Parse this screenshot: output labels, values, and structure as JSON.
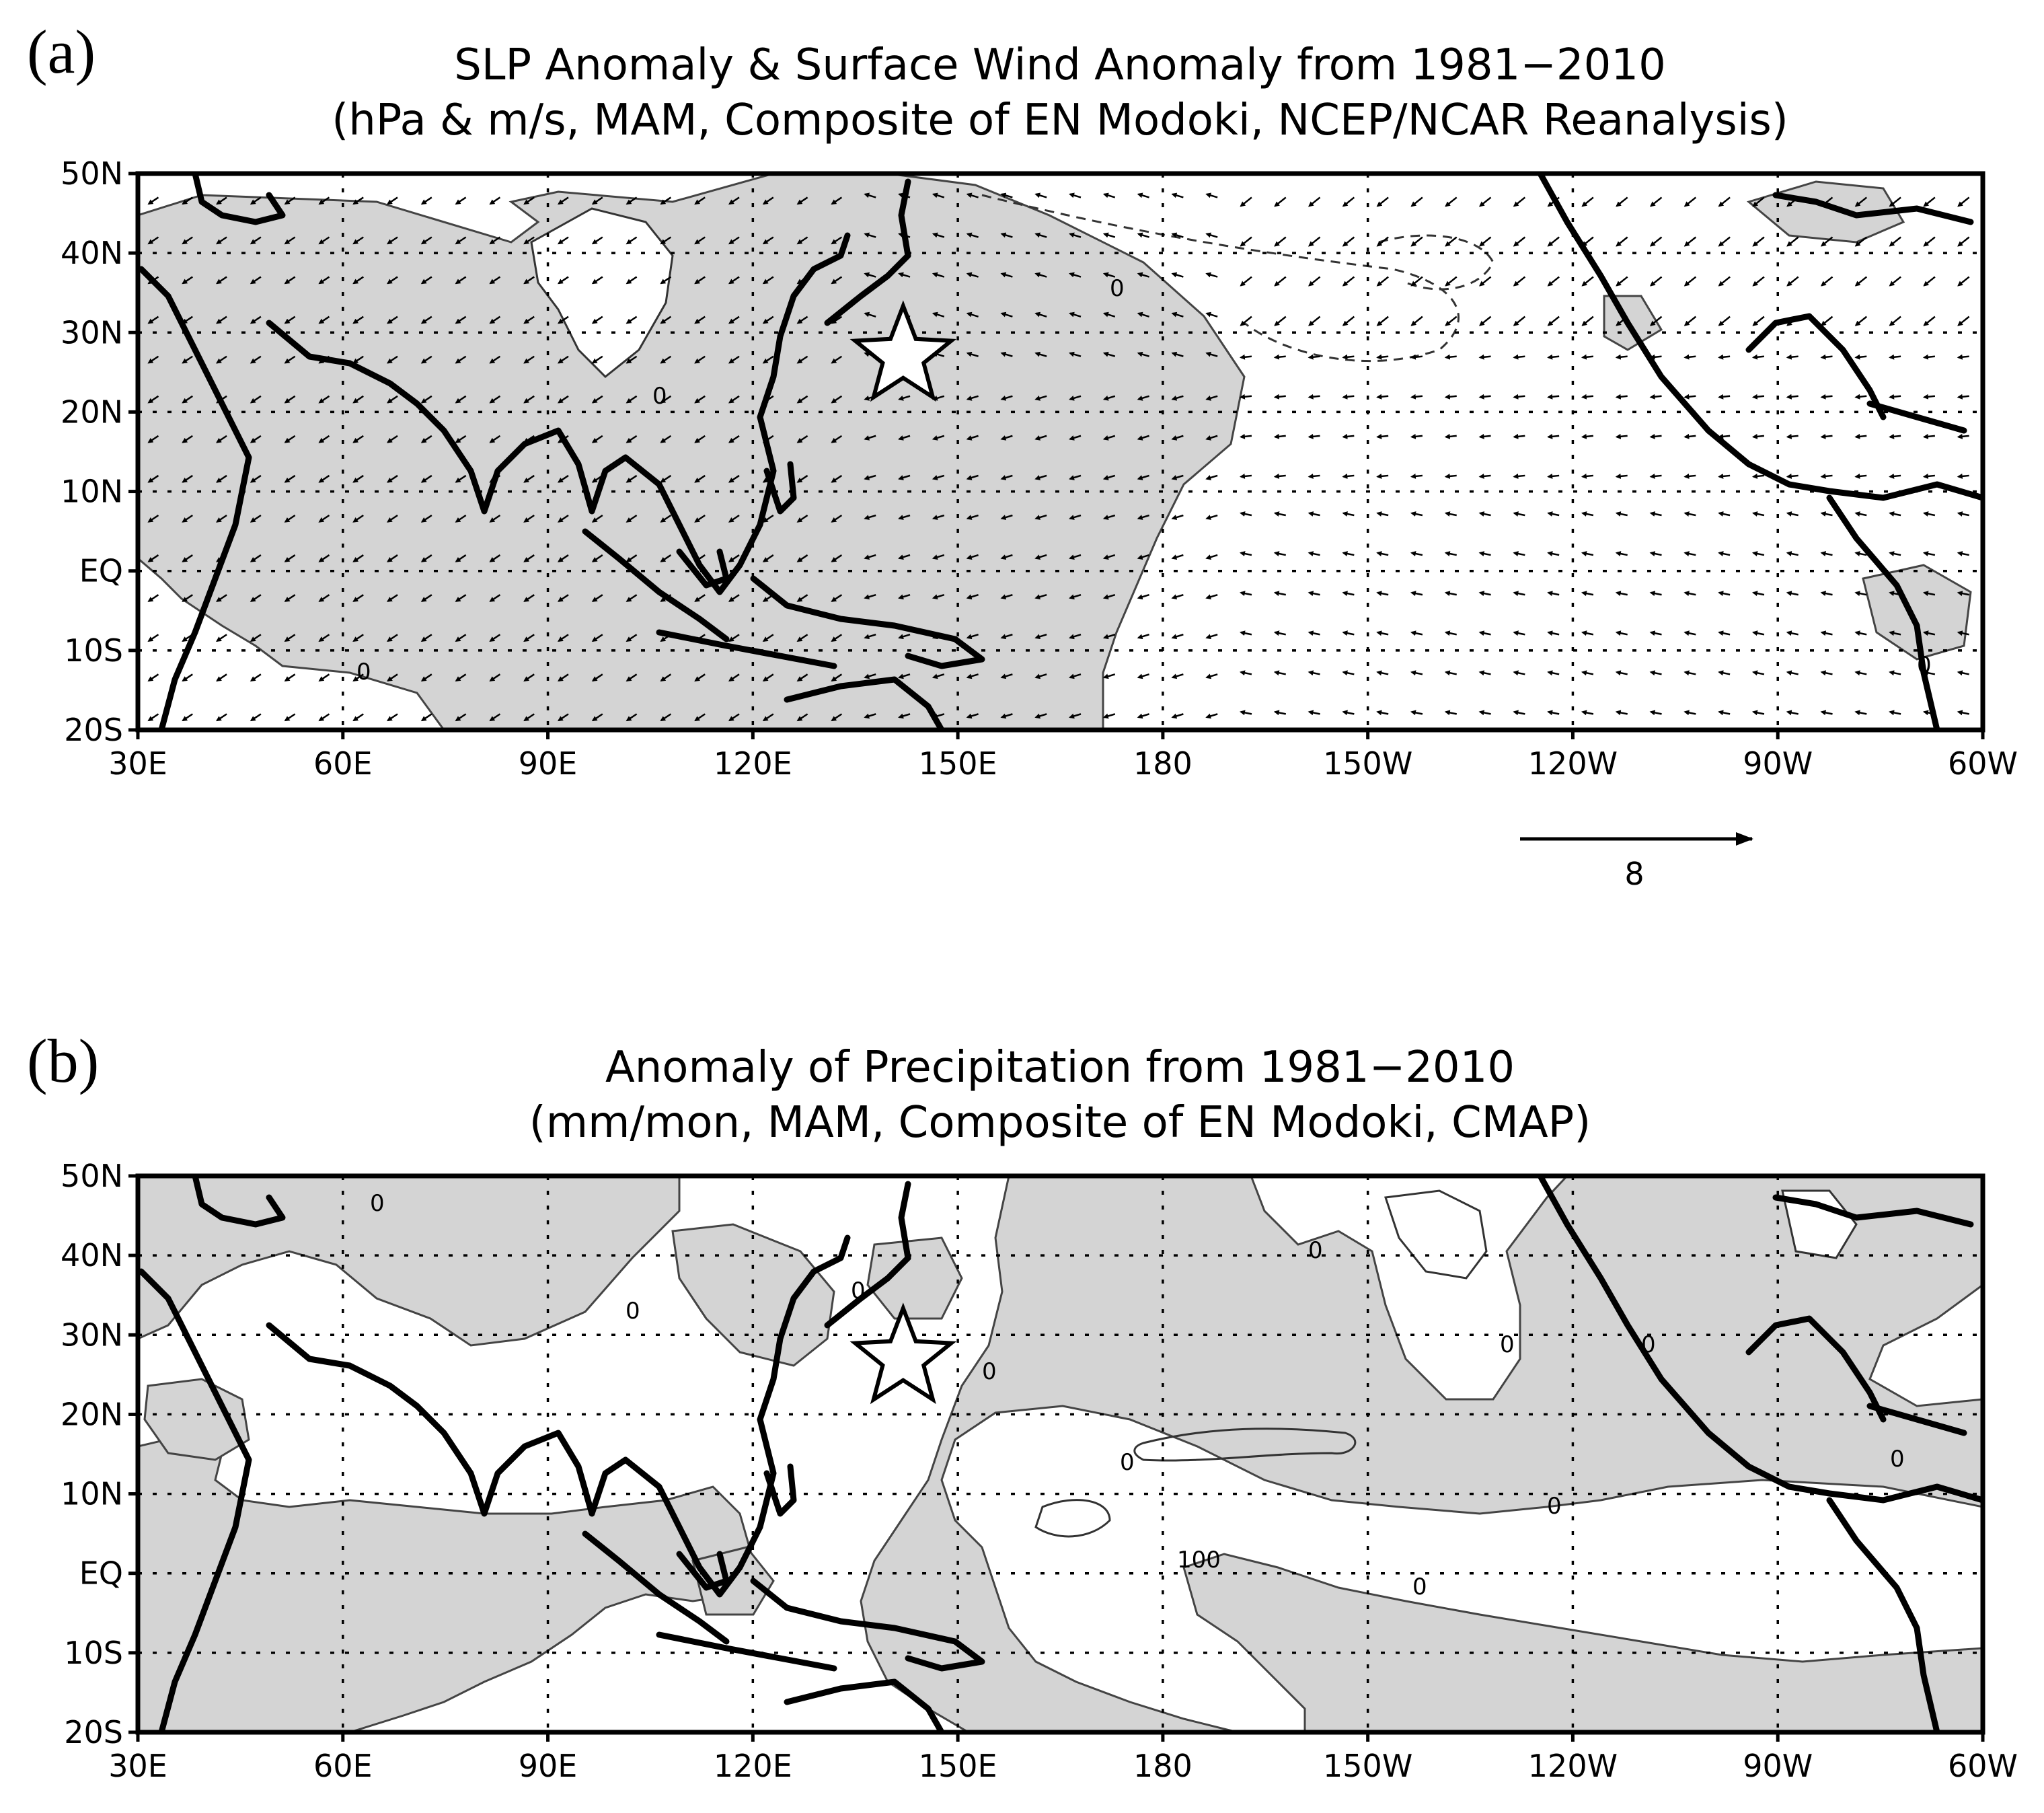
{
  "panels": [
    {
      "letter": "(a)",
      "title_line1": "SLP Anomaly & Surface Wind Anomaly from 1981−2010",
      "title_line2": "(hPa & m/s, MAM, Composite of EN Modoki, NCEP/NCAR Reanalysis)",
      "contour_labels": [
        "0",
        "0",
        "0",
        "0"
      ],
      "reference_vector_label": "8"
    },
    {
      "letter": "(b)",
      "title_line1": "Anomaly of Precipitation from 1981−2010",
      "title_line2": "(mm/mon, MAM, Composite of EN Modoki, CMAP)",
      "contour_labels": [
        "0",
        "0",
        "0",
        "0",
        "0",
        "0",
        "0",
        "0",
        "0",
        "0",
        "0",
        "100"
      ]
    }
  ],
  "lat_ticks": [
    "50N",
    "40N",
    "30N",
    "20N",
    "10N",
    "EQ",
    "10S",
    "20S"
  ],
  "lon_ticks": [
    "30E",
    "60E",
    "90E",
    "120E",
    "150E",
    "180",
    "150W",
    "120W",
    "90W",
    "60W"
  ],
  "marker": {
    "type": "star-icon",
    "lon": 142,
    "lat": 27
  },
  "shade_color": "#d4d4d4"
}
